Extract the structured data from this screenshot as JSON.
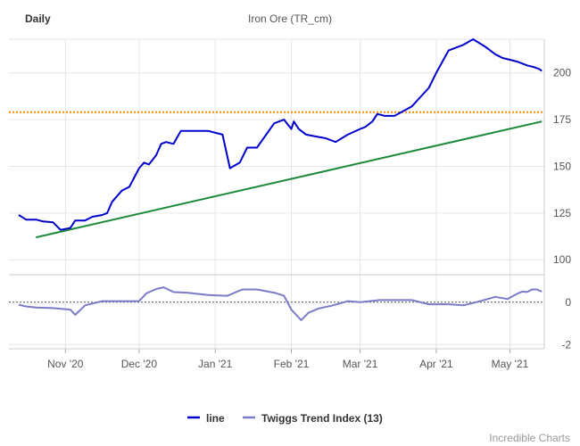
{
  "header": {
    "period": "Daily",
    "title": "Iron Ore (TR_cm)"
  },
  "legend": [
    {
      "label": "line",
      "color": "#0000cc"
    },
    {
      "label": "Twiggs Trend Index (13)",
      "color": "#7b7bc8"
    }
  ],
  "credit": "Incredible Charts",
  "chart_data": [
    {
      "type": "line",
      "title": "Iron Ore (TR_cm)",
      "x_ticks": [
        "Nov '20",
        "Dec '20",
        "Jan '21",
        "Feb '21",
        "Mar '21",
        "Apr '21",
        "May '21"
      ],
      "y_ticks": [
        100,
        125,
        150,
        175,
        200
      ],
      "ylim": [
        92,
        218
      ],
      "x": [
        "2020-10-13",
        "2020-10-16",
        "2020-10-20",
        "2020-10-23",
        "2020-10-27",
        "2020-10-30",
        "2020-11-03",
        "2020-11-05",
        "2020-11-09",
        "2020-11-12",
        "2020-11-16",
        "2020-11-18",
        "2020-11-20",
        "2020-11-24",
        "2020-11-27",
        "2020-12-01",
        "2020-12-03",
        "2020-12-05",
        "2020-12-08",
        "2020-12-10",
        "2020-12-12",
        "2020-12-15",
        "2020-12-18",
        "2020-12-21",
        "2020-12-24",
        "2020-12-29",
        "2021-01-04",
        "2021-01-07",
        "2021-01-11",
        "2021-01-14",
        "2021-01-18",
        "2021-01-25",
        "2021-01-29",
        "2021-02-01",
        "2021-02-02",
        "2021-02-04",
        "2021-02-07",
        "2021-02-11",
        "2021-02-15",
        "2021-02-19",
        "2021-02-24",
        "2021-03-01",
        "2021-03-03",
        "2021-03-06",
        "2021-03-08",
        "2021-03-11",
        "2021-03-15",
        "2021-03-22",
        "2021-03-29",
        "2021-04-01",
        "2021-04-06",
        "2021-04-12",
        "2021-04-16",
        "2021-04-21",
        "2021-04-25",
        "2021-04-28",
        "2021-05-01",
        "2021-05-04",
        "2021-05-06",
        "2021-05-08",
        "2021-05-11",
        "2021-05-13",
        "2021-05-14"
      ],
      "series": [
        {
          "name": "line",
          "color": "#0000cc",
          "values": [
            124,
            121.5,
            121.5,
            120.5,
            120,
            116,
            117,
            121,
            121,
            123,
            124,
            125,
            131,
            137,
            139,
            149,
            152,
            151,
            156,
            162,
            163,
            162,
            169,
            169,
            169,
            169,
            167,
            149,
            152,
            160,
            160,
            173,
            175,
            170,
            174,
            170,
            167,
            166,
            165,
            163,
            167,
            170,
            171,
            174,
            178,
            177,
            177,
            182,
            192,
            200,
            212,
            215,
            218,
            214,
            210,
            208,
            207,
            206,
            205,
            204,
            203,
            202,
            201
          ]
        }
      ],
      "support": {
        "color": "#1a8a3a",
        "from": [
          "2020-10-20",
          112
        ],
        "to": [
          "2021-05-14",
          174
        ]
      },
      "resistance": {
        "color": "#ff8800",
        "value": 179
      }
    },
    {
      "type": "line",
      "title": "Twiggs Trend Index (13)",
      "x_ticks": [
        "Nov '20",
        "Dec '20",
        "Jan '21",
        "Feb '21",
        "Mar '21",
        "Apr '21",
        "May '21"
      ],
      "y_ticks": [
        0,
        -2
      ],
      "ylim": [
        -2.2,
        1.0
      ],
      "zero_line": true,
      "x": [
        "2020-10-13",
        "2020-10-16",
        "2020-10-20",
        "2020-10-27",
        "2020-11-03",
        "2020-11-05",
        "2020-11-09",
        "2020-11-16",
        "2020-11-20",
        "2020-11-27",
        "2020-12-01",
        "2020-12-04",
        "2020-12-08",
        "2020-12-11",
        "2020-12-15",
        "2020-12-21",
        "2020-12-29",
        "2021-01-06",
        "2021-01-12",
        "2021-01-18",
        "2021-01-25",
        "2021-01-29",
        "2021-02-01",
        "2021-02-03",
        "2021-02-05",
        "2021-02-08",
        "2021-02-12",
        "2021-02-18",
        "2021-02-24",
        "2021-03-01",
        "2021-03-05",
        "2021-03-09",
        "2021-03-15",
        "2021-03-22",
        "2021-03-29",
        "2021-04-01",
        "2021-04-06",
        "2021-04-12",
        "2021-04-19",
        "2021-04-25",
        "2021-04-30",
        "2021-05-04",
        "2021-05-06",
        "2021-05-08",
        "2021-05-10",
        "2021-05-12",
        "2021-05-14"
      ],
      "series": [
        {
          "name": "Twiggs Trend Index (13)",
          "color": "#7b7bc8",
          "values": [
            -0.12,
            -0.2,
            -0.25,
            -0.28,
            -0.35,
            -0.6,
            -0.15,
            0.05,
            0.05,
            0.05,
            0.05,
            0.42,
            0.62,
            0.7,
            0.48,
            0.44,
            0.34,
            0.3,
            0.6,
            0.6,
            0.45,
            0.3,
            -0.35,
            -0.6,
            -0.85,
            -0.5,
            -0.3,
            -0.15,
            0.05,
            0.0,
            0.05,
            0.1,
            0.1,
            0.1,
            -0.1,
            -0.1,
            -0.1,
            -0.15,
            0.05,
            0.25,
            0.15,
            0.4,
            0.5,
            0.48,
            0.6,
            0.6,
            0.5
          ]
        }
      ]
    }
  ]
}
